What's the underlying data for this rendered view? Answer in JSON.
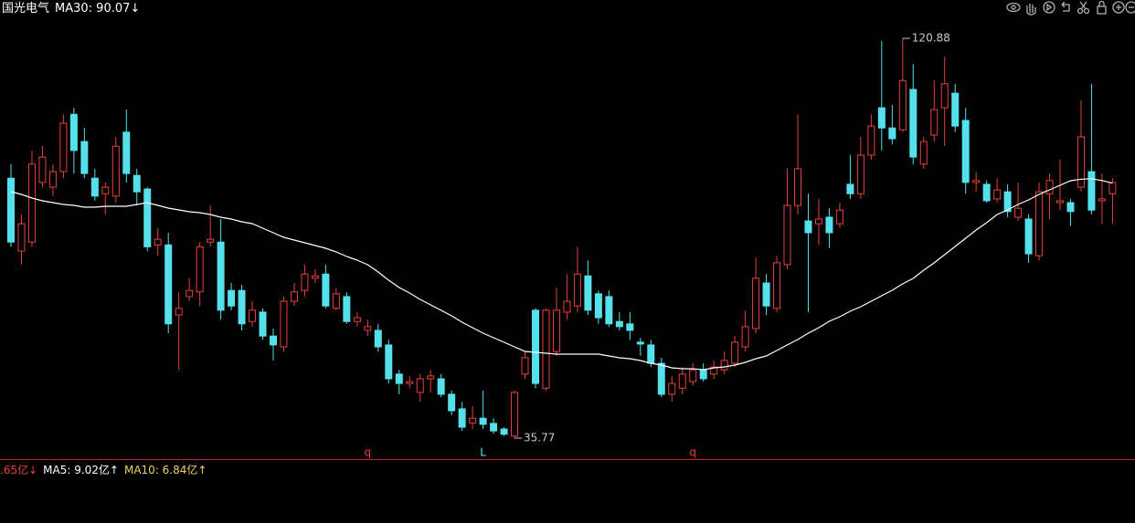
{
  "chart_data": {
    "type": "candlestick",
    "title": "国光电气",
    "ma_label": "MA30: 90.07↓",
    "ylim": [
      31.3,
      129.04
    ],
    "up_color": "#e8413c",
    "down_color": "#54e1ec",
    "ma30_color": "#ffffff",
    "mark_extremes": true,
    "candles": [
      [
        91.1,
        94.1,
        76.5,
        77.5
      ],
      [
        75.6,
        83.4,
        72.7,
        81.4
      ],
      [
        77.5,
        97.0,
        76.5,
        94.1
      ],
      [
        90.2,
        97.9,
        89.2,
        95.6
      ],
      [
        89.2,
        94.1,
        87.3,
        92.5
      ],
      [
        92.5,
        104.7,
        91.1,
        102.8
      ],
      [
        104.7,
        106.1,
        92.1,
        97.0
      ],
      [
        98.9,
        101.8,
        91.1,
        92.1
      ],
      [
        91.1,
        93.1,
        86.3,
        87.3
      ],
      [
        87.8,
        90.2,
        83.4,
        89.2
      ],
      [
        87.3,
        99.9,
        85.9,
        97.9
      ],
      [
        100.9,
        105.7,
        90.2,
        92.1
      ],
      [
        91.7,
        93.1,
        85.3,
        88.2
      ],
      [
        88.8,
        89.2,
        75.6,
        76.5
      ],
      [
        76.9,
        80.5,
        74.6,
        78.1
      ],
      [
        76.9,
        79.5,
        58.1,
        60.1
      ],
      [
        62.0,
        66.8,
        50.3,
        63.4
      ],
      [
        65.9,
        69.8,
        64.9,
        67.2
      ],
      [
        66.9,
        77.5,
        63.9,
        76.5
      ],
      [
        77.5,
        85.3,
        76.5,
        78.1
      ],
      [
        77.5,
        82.4,
        61.0,
        63.0
      ],
      [
        67.2,
        68.8,
        63.0,
        63.9
      ],
      [
        67.2,
        68.4,
        58.7,
        60.1
      ],
      [
        60.6,
        64.9,
        59.5,
        63.0
      ],
      [
        62.6,
        63.4,
        56.7,
        57.5
      ],
      [
        57.5,
        59.1,
        52.3,
        55.6
      ],
      [
        55.2,
        65.9,
        54.2,
        64.9
      ],
      [
        64.9,
        68.8,
        63.9,
        66.9
      ],
      [
        67.2,
        72.7,
        65.9,
        70.7
      ],
      [
        69.8,
        71.7,
        68.8,
        70.3
      ],
      [
        70.7,
        72.7,
        63.4,
        63.9
      ],
      [
        63.4,
        67.8,
        63.0,
        66.5
      ],
      [
        65.9,
        66.8,
        60.1,
        60.6
      ],
      [
        60.6,
        62.6,
        59.5,
        61.4
      ],
      [
        58.7,
        61.0,
        57.5,
        59.5
      ],
      [
        58.7,
        60.1,
        54.2,
        55.2
      ],
      [
        55.6,
        56.7,
        47.4,
        48.4
      ],
      [
        49.4,
        50.3,
        45.1,
        47.4
      ],
      [
        47.4,
        49.0,
        46.4,
        47.8
      ],
      [
        45.5,
        49.4,
        43.5,
        48.4
      ],
      [
        48.4,
        50.3,
        45.5,
        49.0
      ],
      [
        48.4,
        49.4,
        44.5,
        45.1
      ],
      [
        45.1,
        45.9,
        40.6,
        41.6
      ],
      [
        42.0,
        43.5,
        37.3,
        38.1
      ],
      [
        39.0,
        42.6,
        37.7,
        40.0
      ],
      [
        40.0,
        45.9,
        37.7,
        38.7
      ],
      [
        38.9,
        40.0,
        36.7,
        37.3
      ],
      [
        37.7,
        38.1,
        36.2,
        36.6
      ],
      [
        36.2,
        45.9,
        35.77,
        45.5
      ],
      [
        49.4,
        54.2,
        48.4,
        52.9
      ],
      [
        63.0,
        63.4,
        46.4,
        47.4
      ],
      [
        46.4,
        63.4,
        45.9,
        63.0
      ],
      [
        54.2,
        67.8,
        53.3,
        63.0
      ],
      [
        62.6,
        70.7,
        61.0,
        64.9
      ],
      [
        63.9,
        76.5,
        62.6,
        70.7
      ],
      [
        70.3,
        73.6,
        62.0,
        63.0
      ],
      [
        66.5,
        67.2,
        60.1,
        61.4
      ],
      [
        65.9,
        67.2,
        59.5,
        60.1
      ],
      [
        60.6,
        62.6,
        58.7,
        59.5
      ],
      [
        60.1,
        62.6,
        56.7,
        58.7
      ],
      [
        56.2,
        57.1,
        53.3,
        55.8
      ],
      [
        55.6,
        56.7,
        50.9,
        51.7
      ],
      [
        51.7,
        52.9,
        44.5,
        45.1
      ],
      [
        45.1,
        49.0,
        43.5,
        47.4
      ],
      [
        46.4,
        50.9,
        45.1,
        49.4
      ],
      [
        47.8,
        51.7,
        47.0,
        50.3
      ],
      [
        50.3,
        51.7,
        47.8,
        48.4
      ],
      [
        49.4,
        52.3,
        48.4,
        50.9
      ],
      [
        50.3,
        54.2,
        49.4,
        52.3
      ],
      [
        51.7,
        57.5,
        50.9,
        56.2
      ],
      [
        55.2,
        62.9,
        54.2,
        59.5
      ],
      [
        59.1,
        74.2,
        58.1,
        69.8
      ],
      [
        68.8,
        70.7,
        62.0,
        63.9
      ],
      [
        63.4,
        74.6,
        62.6,
        73.1
      ],
      [
        72.7,
        93.1,
        71.7,
        85.3
      ],
      [
        85.3,
        104.7,
        83.4,
        93.1
      ],
      [
        82.0,
        87.8,
        62.6,
        79.5
      ],
      [
        81.4,
        86.7,
        76.9,
        82.4
      ],
      [
        82.8,
        84.7,
        76.2,
        79.5
      ],
      [
        81.4,
        85.9,
        80.5,
        84.3
      ],
      [
        89.8,
        96.0,
        86.7,
        87.8
      ],
      [
        87.8,
        99.9,
        86.7,
        96.0
      ],
      [
        96.0,
        104.7,
        95.0,
        102.2
      ],
      [
        106.1,
        120.3,
        97.0,
        101.8
      ],
      [
        101.8,
        106.7,
        98.3,
        99.5
      ],
      [
        101.4,
        120.88,
        100.9,
        111.9
      ],
      [
        110.0,
        115.4,
        94.1,
        95.6
      ],
      [
        94.1,
        99.9,
        93.1,
        98.9
      ],
      [
        100.3,
        111.9,
        98.9,
        105.7
      ],
      [
        106.1,
        117.0,
        97.9,
        111.2
      ],
      [
        109.2,
        111.2,
        100.9,
        102.2
      ],
      [
        103.4,
        106.1,
        87.8,
        90.2
      ],
      [
        90.2,
        92.5,
        88.2,
        90.6
      ],
      [
        89.8,
        90.6,
        85.9,
        86.3
      ],
      [
        86.7,
        91.1,
        85.9,
        88.6
      ],
      [
        88.2,
        89.8,
        82.8,
        84.0
      ],
      [
        82.8,
        90.2,
        82.0,
        84.7
      ],
      [
        82.4,
        83.4,
        73.1,
        75.0
      ],
      [
        74.6,
        90.2,
        73.6,
        88.2
      ],
      [
        87.8,
        92.1,
        82.4,
        90.6
      ],
      [
        85.9,
        95.0,
        84.3,
        86.3
      ],
      [
        85.9,
        86.7,
        80.9,
        84.0
      ],
      [
        89.2,
        107.7,
        88.2,
        99.9
      ],
      [
        92.5,
        111.2,
        83.4,
        84.3
      ],
      [
        86.3,
        92.1,
        81.4,
        86.7
      ],
      [
        87.8,
        91.1,
        81.4,
        90.2
      ]
    ],
    "ma30": [
      88.24,
      87.65,
      86.88,
      86.29,
      85.91,
      85.52,
      85.32,
      84.93,
      84.93,
      85.13,
      85.13,
      85.13,
      85.52,
      85.91,
      85.32,
      84.74,
      84.35,
      83.96,
      83.77,
      83.38,
      82.8,
      82.41,
      81.82,
      81.43,
      80.47,
      79.49,
      78.52,
      77.94,
      77.36,
      76.77,
      76.19,
      75.41,
      74.44,
      73.66,
      72.69,
      71.14,
      69.39,
      67.83,
      66.67,
      65.31,
      64.14,
      62.98,
      61.81,
      60.45,
      59.29,
      58.12,
      57.15,
      56.18,
      55.21,
      54.23,
      54.04,
      53.85,
      53.65,
      53.65,
      53.65,
      53.65,
      53.65,
      53.26,
      52.87,
      52.68,
      52.29,
      51.71,
      51.32,
      50.74,
      50.54,
      50.54,
      50.35,
      50.74,
      50.93,
      51.32,
      51.9,
      52.68,
      53.26,
      54.43,
      55.6,
      56.76,
      58.12,
      59.29,
      60.65,
      61.62,
      62.78,
      63.76,
      64.92,
      66.09,
      67.25,
      68.61,
      69.78,
      71.53,
      73.08,
      74.83,
      76.58,
      78.33,
      80.08,
      81.63,
      83.38,
      84.35,
      85.52,
      86.49,
      87.65,
      88.63,
      89.6,
      90.57,
      90.9,
      91.0,
      90.6,
      90.07
    ],
    "signals": [
      null,
      null,
      null,
      null,
      null,
      null,
      null,
      null,
      null,
      null,
      null,
      null,
      null,
      null,
      null,
      null,
      null,
      null,
      null,
      null,
      null,
      null,
      null,
      null,
      null,
      null,
      null,
      null,
      null,
      null,
      null,
      null,
      null,
      null,
      "q",
      null,
      null,
      null,
      null,
      null,
      null,
      null,
      null,
      null,
      null,
      "L",
      null,
      null,
      null,
      null,
      null,
      null,
      null,
      null,
      null,
      null,
      null,
      null,
      null,
      null,
      null,
      null,
      null,
      null,
      null,
      "q",
      null,
      null,
      null,
      null,
      null,
      null,
      null,
      null,
      null,
      null,
      null,
      null,
      null,
      null,
      null,
      null,
      null,
      null,
      null,
      null,
      null,
      null,
      null,
      null,
      null,
      null,
      null,
      null,
      null,
      null,
      null,
      null,
      null,
      null,
      null,
      null,
      null,
      null,
      null,
      null
    ],
    "signal_colors": {
      "q": "#e8413c",
      "L": "#54e1ec"
    },
    "volume_legend": [
      ".65亿↓",
      "MA5: 9.02亿↑",
      "MA10: 6.84亿↑"
    ],
    "volume_legend_colors": [
      "#e8413c",
      "#ffffff",
      "#f0d060"
    ]
  }
}
